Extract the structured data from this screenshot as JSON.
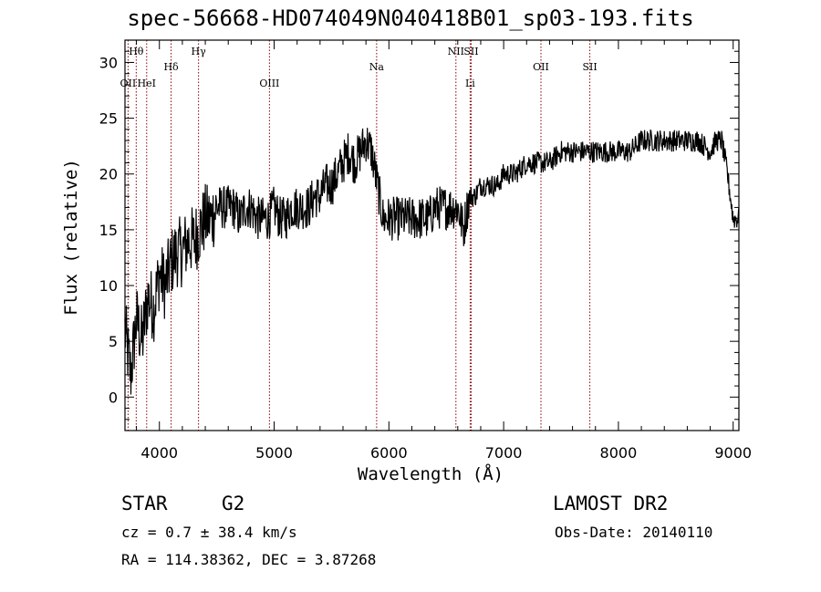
{
  "chart_data": {
    "type": "line",
    "title": "spec-56668-HD074049N040418B01_sp03-193.fits",
    "xlabel": "Wavelength (Å)",
    "ylabel": "Flux (relative)",
    "xlim": [
      3700,
      9050
    ],
    "ylim": [
      -3,
      32
    ],
    "xticks": [
      4000,
      5000,
      6000,
      7000,
      8000,
      9000
    ],
    "yticks": [
      0,
      5,
      10,
      15,
      20,
      25,
      30
    ],
    "grid": false,
    "series": [
      {
        "x": [
          3700,
          3750,
          3800,
          3850,
          3900,
          3950,
          4000,
          4050,
          4100,
          4150,
          4200,
          4250,
          4300,
          4350,
          4400,
          4450,
          4500,
          4550,
          4600,
          4650,
          4700,
          4750,
          4800,
          4850,
          4900,
          4950,
          5000,
          5050,
          5100,
          5150,
          5200,
          5250,
          5300,
          5350,
          5400,
          5450,
          5500,
          5550,
          5600,
          5650,
          5700,
          5750,
          5800,
          5850,
          5900,
          5950,
          6000,
          6050,
          6100,
          6150,
          6200,
          6250,
          6300,
          6350,
          6400,
          6450,
          6500,
          6550,
          6600,
          6650,
          6700,
          6750,
          6800,
          6850,
          6900,
          6950,
          7000,
          7100,
          7200,
          7300,
          7400,
          7500,
          7600,
          7700,
          7800,
          7900,
          8000,
          8100,
          8200,
          8300,
          8400,
          8500,
          8600,
          8700,
          8800,
          8850,
          8900,
          8950,
          9000
        ],
        "values": [
          6,
          2,
          7,
          5,
          9,
          8,
          11,
          10,
          12,
          13,
          13,
          14,
          14,
          15,
          16,
          16,
          17,
          17,
          17,
          17,
          16,
          17,
          17,
          16,
          16,
          16,
          17,
          16,
          16,
          17,
          17,
          17,
          17,
          18,
          18,
          19,
          19,
          20,
          21,
          22,
          21,
          22,
          23,
          22,
          19,
          16,
          16,
          16,
          16,
          16,
          16,
          16,
          16,
          16,
          17,
          17,
          17,
          17,
          17,
          15,
          18,
          18,
          19,
          19,
          19,
          19,
          20,
          20,
          21,
          21,
          21,
          22,
          22,
          22,
          22,
          22,
          22,
          22,
          23,
          23,
          23,
          23,
          23,
          23,
          22,
          23,
          23,
          20,
          16
        ]
      }
    ],
    "lines": [
      {
        "label": "Hθ",
        "x": 3798,
        "row": 0
      },
      {
        "label": "OII",
        "x": 3727,
        "row": 2
      },
      {
        "label": "HeI",
        "x": 3889,
        "row": 2
      },
      {
        "label": "Hδ",
        "x": 4102,
        "row": 1
      },
      {
        "label": "Hγ",
        "x": 4341,
        "row": 0
      },
      {
        "label": "OIII",
        "x": 4959,
        "row": 2
      },
      {
        "label": "Na",
        "x": 5893,
        "row": 1
      },
      {
        "label": "NII",
        "x": 6584,
        "row": 0
      },
      {
        "label": "SII",
        "x": 6717,
        "row": 0
      },
      {
        "label": "Li",
        "x": 6708,
        "row": 2
      },
      {
        "label": "OII",
        "x": 7325,
        "row": 1
      },
      {
        "label": "SII",
        "x": 7751,
        "row": 1
      }
    ]
  },
  "info": {
    "object_type": "STAR",
    "subclass": "G2",
    "survey": "LAMOST DR2",
    "cz": "cz = 0.7 ± 38.4 km/s",
    "obs_date": "Obs-Date: 20140110",
    "coords": "RA = 114.38362, DEC =   3.87268"
  },
  "colors": {
    "spectrum": "#000000",
    "marker_lines": "#8b0000",
    "axes": "#000000"
  }
}
